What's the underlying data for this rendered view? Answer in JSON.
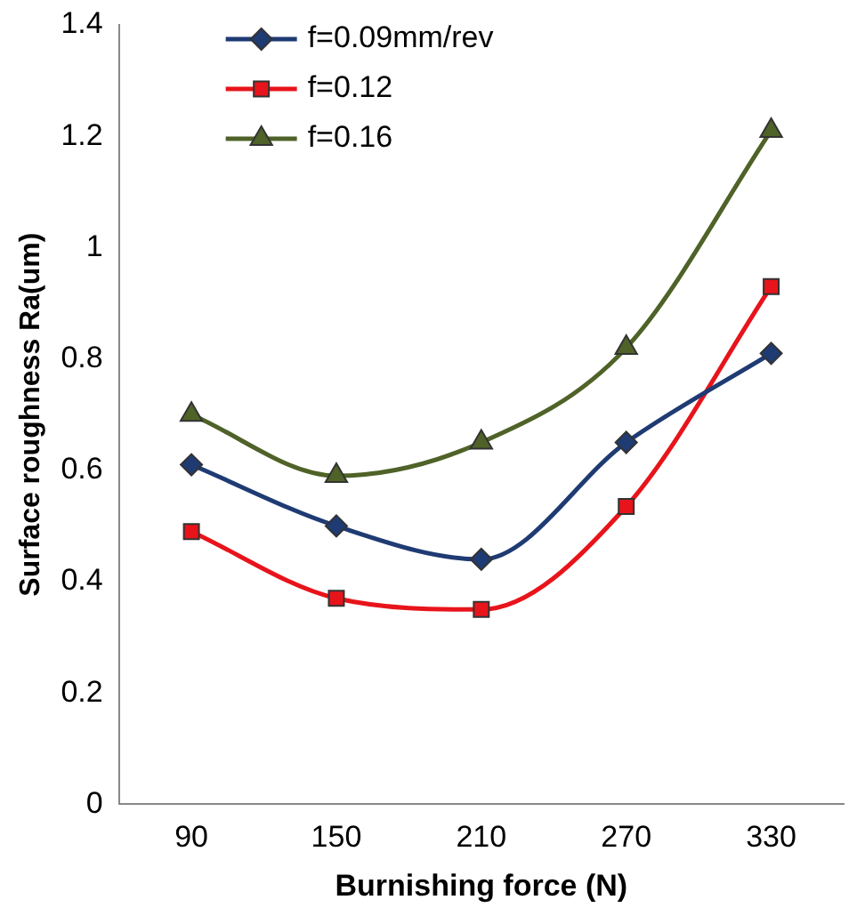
{
  "chart_data": {
    "type": "line",
    "xlabel": "Burnishing force (N)",
    "ylabel": "Surface roughness Ra(um)",
    "categories": [
      "90",
      "150",
      "210",
      "270",
      "330"
    ],
    "series": [
      {
        "name": "f=0.09mm/rev",
        "color": "#1f3b73",
        "marker": "diamond",
        "values": [
          0.61,
          0.5,
          0.44,
          0.65,
          0.81
        ]
      },
      {
        "name": "f=0.12",
        "color": "#e8141b",
        "marker": "square",
        "values": [
          0.49,
          0.37,
          0.35,
          0.535,
          0.93
        ]
      },
      {
        "name": "f=0.16",
        "color": "#4f6228",
        "marker": "triangle",
        "values": [
          0.7,
          0.59,
          0.65,
          0.82,
          1.21
        ]
      }
    ],
    "ylim": [
      0,
      1.4
    ],
    "yticks": [
      0,
      0.2,
      0.4,
      0.6,
      0.8,
      1,
      1.2,
      1.4
    ],
    "grid": false,
    "legend": "top left"
  }
}
